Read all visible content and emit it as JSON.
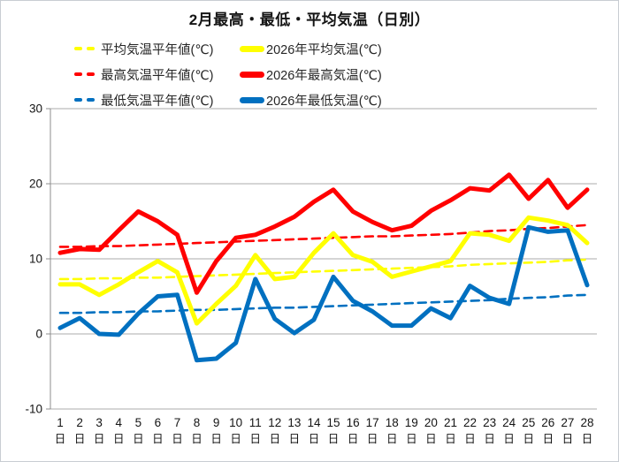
{
  "title": "2月最高・最低・平均気温（日別）",
  "axis": {
    "yticks": [
      "30",
      "20",
      "10",
      "0",
      "-10"
    ],
    "x_day_suffix": "日"
  },
  "colors": {
    "red": "#FF0000",
    "yellow": "#FFFF00",
    "blue": "#0070C0",
    "grid": "#ABABAB",
    "axis_line": "#8C8C8C",
    "text": "#141414",
    "chart_border": "#C9CDD3",
    "background": "#FFFFFF"
  },
  "chart_data": {
    "type": "line",
    "title": "2月最高・最低・平均気温（日別）",
    "xlabel": "",
    "ylabel": "",
    "ylim": [
      -10,
      30
    ],
    "yticks": [
      30,
      20,
      10,
      0,
      -10
    ],
    "grid": "horizontal",
    "legend_position": "top",
    "categories": [
      "1",
      "2",
      "3",
      "4",
      "5",
      "6",
      "7",
      "8",
      "9",
      "10",
      "11",
      "12",
      "13",
      "14",
      "15",
      "16",
      "17",
      "18",
      "19",
      "20",
      "21",
      "22",
      "23",
      "24",
      "25",
      "26",
      "27",
      "28"
    ],
    "x_suffix": "日",
    "series": [
      {
        "name": "平均気温平年値(℃)",
        "color": "#FFFF00",
        "style": "dashed",
        "values": [
          7.3,
          7.3,
          7.4,
          7.4,
          7.5,
          7.5,
          7.6,
          7.7,
          7.8,
          7.9,
          8.0,
          8.1,
          8.2,
          8.3,
          8.4,
          8.5,
          8.6,
          8.7,
          8.8,
          8.9,
          9.0,
          9.2,
          9.3,
          9.4,
          9.5,
          9.6,
          9.8,
          9.9
        ]
      },
      {
        "name": "2026年平均気温(℃)",
        "color": "#FFFF00",
        "style": "solid",
        "values": [
          6.6,
          6.6,
          5.2,
          6.6,
          8.2,
          9.7,
          8.2,
          1.4,
          4.0,
          6.4,
          10.5,
          7.3,
          7.6,
          10.8,
          13.4,
          10.5,
          9.6,
          7.6,
          8.3,
          9.0,
          9.7,
          13.4,
          13.2,
          12.4,
          15.5,
          15.1,
          14.5,
          12.1
        ]
      },
      {
        "name": "最高気温平年値(℃)",
        "color": "#FF0000",
        "style": "dashed",
        "values": [
          11.6,
          11.6,
          11.7,
          11.7,
          11.8,
          11.9,
          12.0,
          12.1,
          12.2,
          12.3,
          12.4,
          12.5,
          12.6,
          12.7,
          12.8,
          12.9,
          13.0,
          13.0,
          13.1,
          13.2,
          13.3,
          13.5,
          13.7,
          13.8,
          14.0,
          14.1,
          14.3,
          14.5
        ]
      },
      {
        "name": "2026年最高気温(℃)",
        "color": "#FF0000",
        "style": "solid",
        "values": [
          10.8,
          11.3,
          11.2,
          13.8,
          16.3,
          15.0,
          13.2,
          5.5,
          9.7,
          12.8,
          13.2,
          14.3,
          15.6,
          17.6,
          19.2,
          16.3,
          14.9,
          13.8,
          14.4,
          16.4,
          17.8,
          19.4,
          19.1,
          21.2,
          18.0,
          20.5,
          16.8,
          19.2
        ]
      },
      {
        "name": "最低気温平年値(℃)",
        "color": "#0070C0",
        "style": "dashed",
        "values": [
          2.8,
          2.8,
          2.9,
          2.9,
          3.0,
          3.0,
          3.1,
          3.2,
          3.2,
          3.3,
          3.4,
          3.5,
          3.5,
          3.6,
          3.7,
          3.8,
          3.9,
          4.0,
          4.1,
          4.2,
          4.3,
          4.4,
          4.5,
          4.7,
          4.8,
          4.9,
          5.1,
          5.2
        ]
      },
      {
        "name": "2026年最低気温(℃)",
        "color": "#0070C0",
        "style": "solid",
        "values": [
          0.8,
          2.1,
          0.0,
          -0.1,
          2.7,
          5.0,
          5.2,
          -3.5,
          -3.3,
          -1.2,
          7.3,
          2.0,
          0.1,
          1.9,
          7.6,
          4.4,
          3.0,
          1.1,
          1.1,
          3.4,
          2.1,
          6.4,
          4.8,
          4.0,
          14.2,
          13.6,
          13.8,
          6.5
        ]
      }
    ]
  },
  "layout_note_values_visible_only": true
}
